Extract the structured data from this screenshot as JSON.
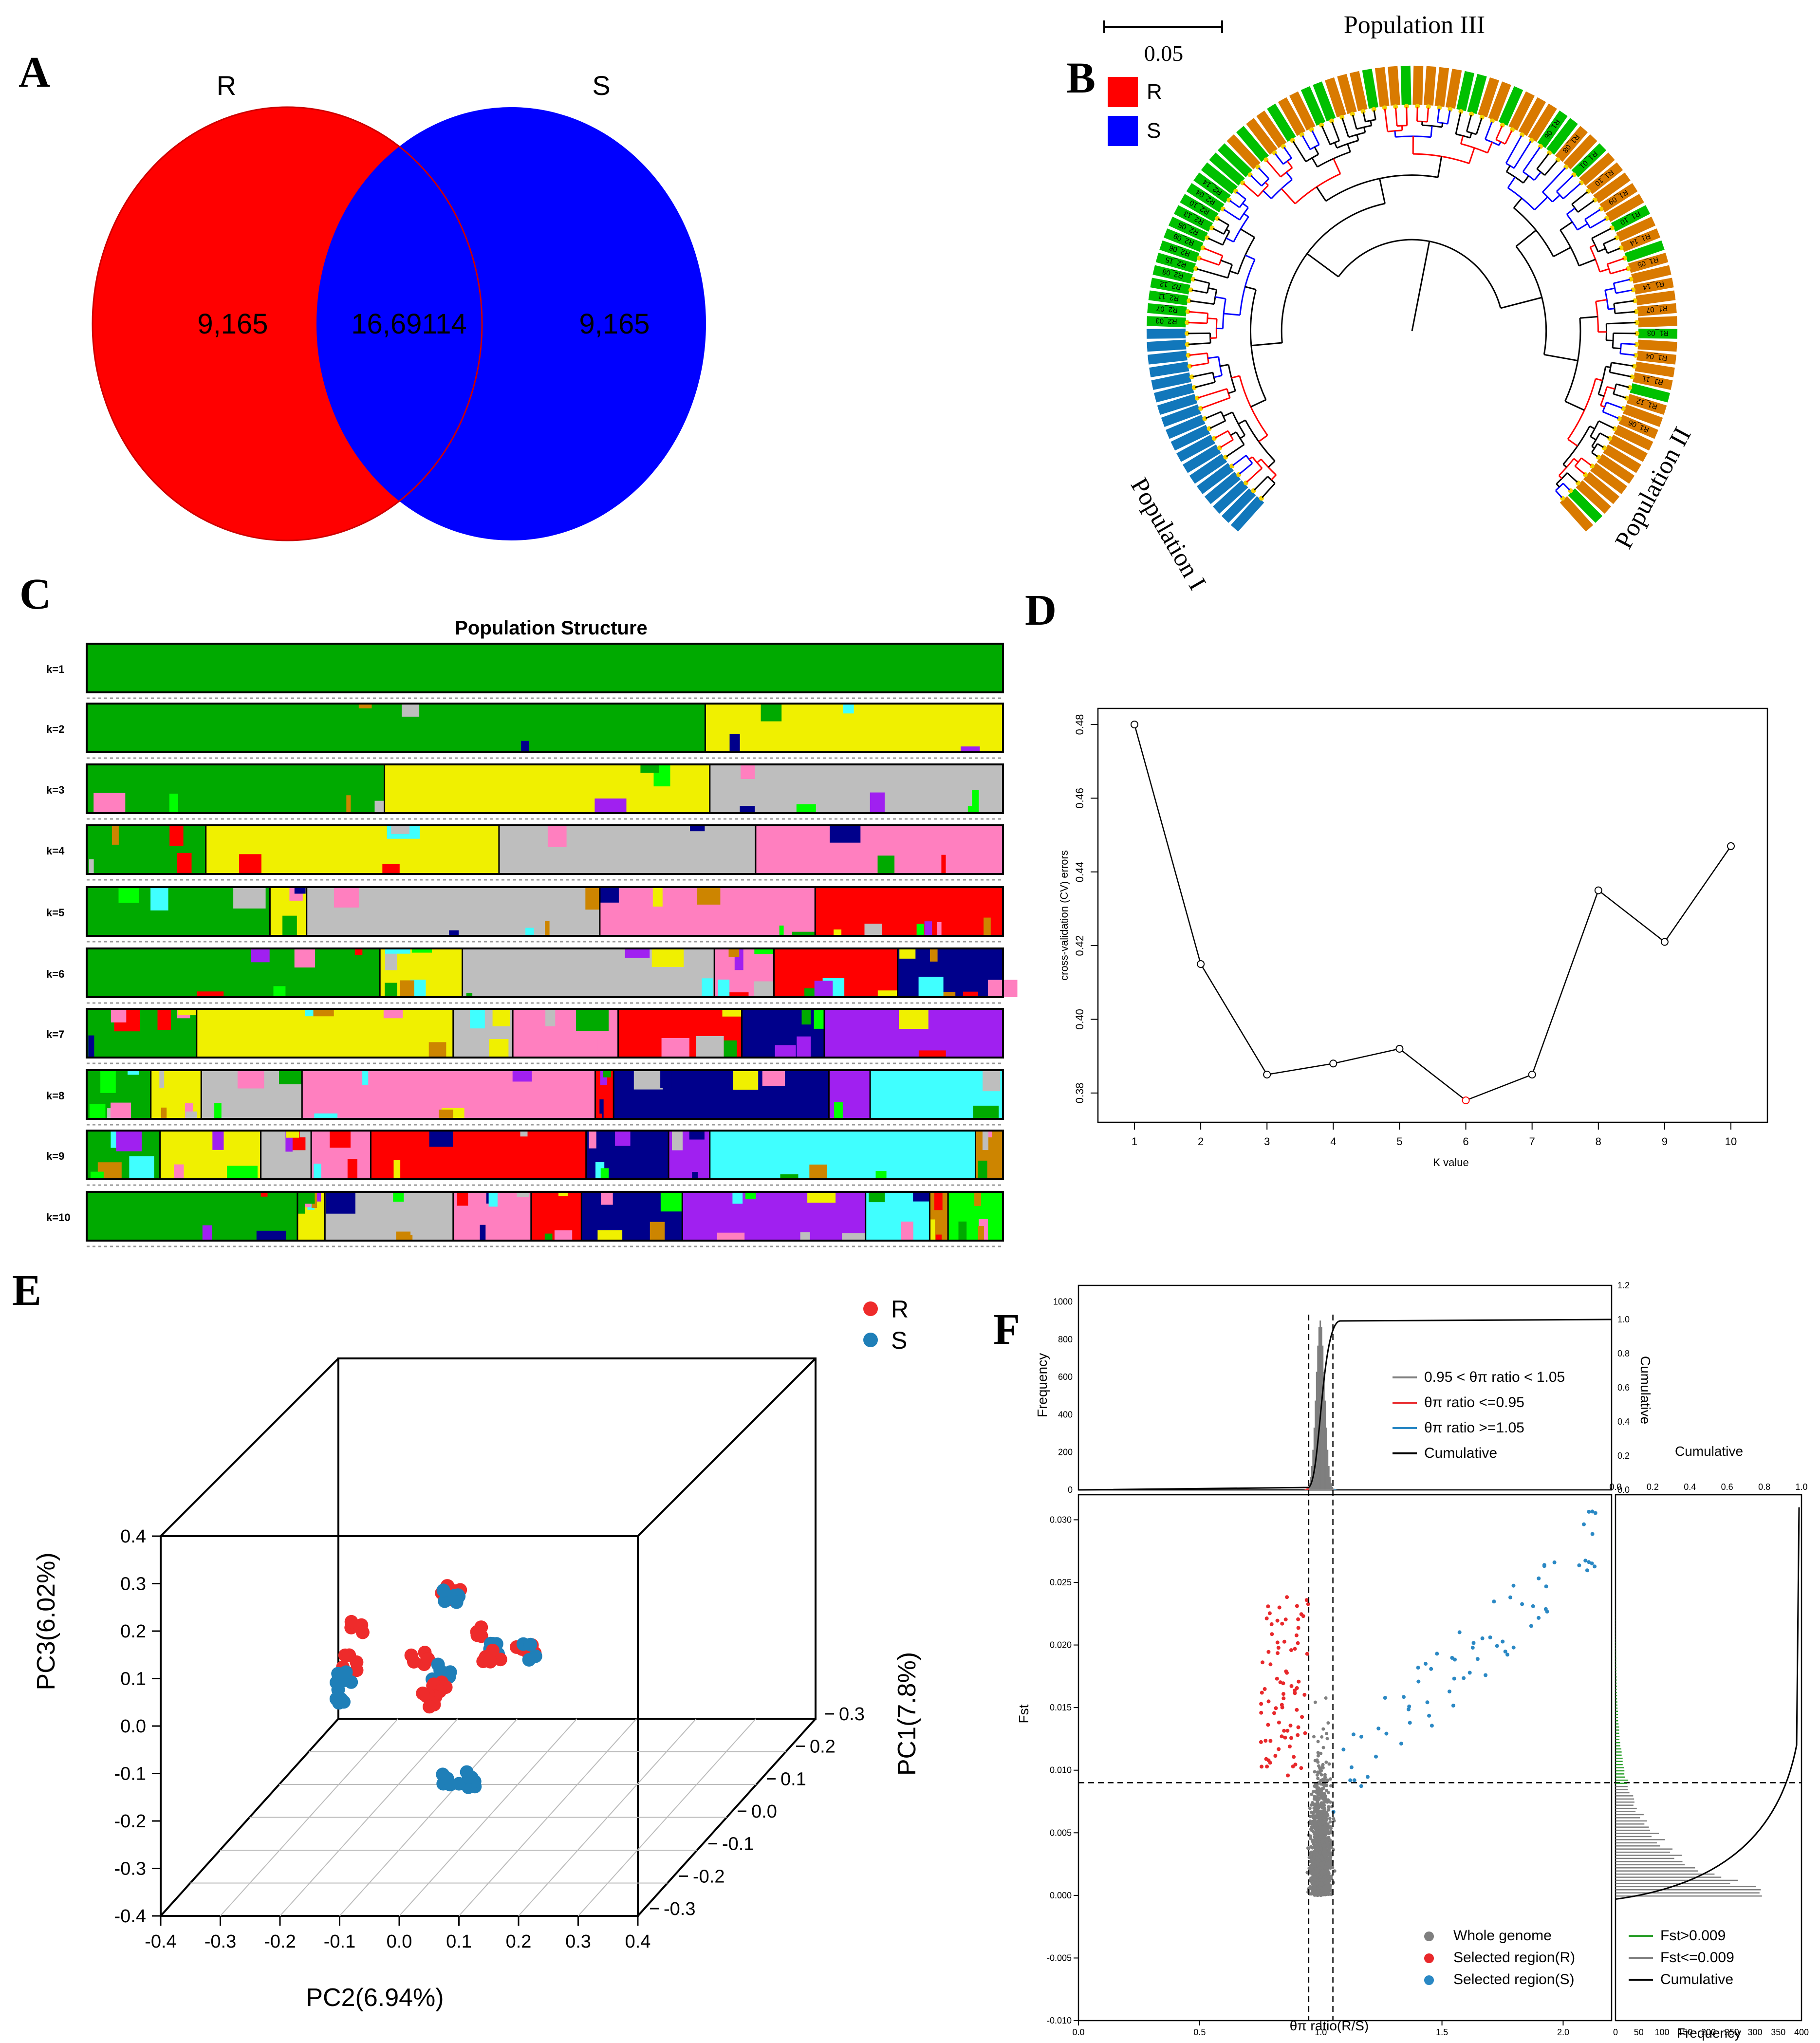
{
  "panel_labels": {
    "a": "A",
    "b": "B",
    "c": "C",
    "d": "D",
    "e": "E",
    "f": "F"
  },
  "venn": {
    "label_left": "R",
    "label_right": "S",
    "left_only": "9,165",
    "overlap": "16,69114",
    "right_only": "9,165",
    "color_left": "#ff0000",
    "color_right": "#0000ff"
  },
  "tree": {
    "scale_label": "0.05",
    "legend": [
      {
        "label": "R",
        "color": "#ff0000"
      },
      {
        "label": "S",
        "color": "#0000ff"
      }
    ],
    "populations": [
      "Population III",
      "Population II",
      "Population I"
    ],
    "tip_colors": {
      "orange": "#d97a00",
      "green": "#00c000",
      "blue": "#1177bb"
    },
    "tips_a": [
      "R1_06",
      "R1_08",
      "R1_01",
      "R1_10",
      "R1_09",
      "R1_10",
      "R1_14",
      "R1_05",
      "R1_14",
      "R1_07",
      "R1_03",
      "R1_04",
      "R1_11",
      "R1_12",
      "R1_06"
    ],
    "tips_b": [
      "R2_03",
      "R2_07",
      "R2_11",
      "R2_12",
      "R2_08",
      "R2_15",
      "R2_06",
      "R2_09",
      "R2_05",
      "R2_13",
      "R2_10",
      "R2_04",
      "R2_14"
    ]
  },
  "structure": {
    "title": "Population Structure",
    "row_labels": [
      "k=1",
      "k=2",
      "k=3",
      "k=4",
      "k=5",
      "k=6",
      "k=7",
      "k=8",
      "k=9",
      "k=10"
    ],
    "colors": {
      "green": "#00aa00",
      "yellow": "#f0f000",
      "grey": "#bebebe",
      "pink": "#ff7fbf",
      "red": "#ff0000",
      "navy": "#00008b",
      "purple": "#a020f0",
      "cyan": "#40ffff",
      "brown": "#cd8500",
      "lime": "#00ff00"
    }
  },
  "chart_data": [
    {
      "id": "cv",
      "type": "line",
      "title": "",
      "xlabel": "K value",
      "ylabel": "cross-validation (CV) errors",
      "x": [
        1,
        2,
        3,
        4,
        5,
        6,
        7,
        8,
        9,
        10
      ],
      "y": [
        0.48,
        0.415,
        0.385,
        0.388,
        0.392,
        0.378,
        0.385,
        0.435,
        0.421,
        0.447
      ],
      "highlight_index": 5,
      "xlim": [
        1,
        10
      ],
      "ylim": [
        0.375,
        0.485
      ],
      "yticks": [
        "0.38",
        "0.40",
        "0.42",
        "0.44",
        "0.46",
        "0.48"
      ]
    },
    {
      "id": "pca",
      "type": "scatter",
      "xlabel": "PC2(6.94%)",
      "ylabel": "PC3(6.02%)",
      "zlabel": "PC1(7.8%)",
      "legend": [
        {
          "label": "R",
          "color": "#ee2b2b"
        },
        {
          "label": "S",
          "color": "#1f7fb8"
        }
      ],
      "xticks": [
        "-0.4",
        "-0.3",
        "-0.2",
        "-0.1",
        "0.0",
        "0.1",
        "0.2",
        "0.3",
        "0.4"
      ],
      "yticks": [
        "-0.4",
        "-0.3",
        "-0.2",
        "-0.1",
        "0.0",
        "0.1",
        "0.2",
        "0.3",
        "0.4"
      ],
      "zticks": [
        "-0.3",
        "-0.2",
        "-0.1",
        "0.0",
        "0.1",
        "0.2",
        "0.3"
      ],
      "clusters": [
        {
          "x": 0.01,
          "y": 0.24,
          "group": "R"
        },
        {
          "x": -0.01,
          "y": 0.16,
          "group": "R"
        },
        {
          "x": -0.02,
          "y": 0.11,
          "group": "S"
        },
        {
          "x": -0.04,
          "y": 0.06,
          "group": "S"
        },
        {
          "x": 0.19,
          "y": 0.34,
          "group": "R"
        },
        {
          "x": 0.19,
          "y": 0.32,
          "group": "S"
        },
        {
          "x": 0.13,
          "y": 0.16,
          "group": "R"
        },
        {
          "x": 0.17,
          "y": 0.13,
          "group": "S"
        },
        {
          "x": 0.17,
          "y": 0.1,
          "group": "R"
        },
        {
          "x": 0.15,
          "y": 0.07,
          "group": "R"
        },
        {
          "x": 0.25,
          "y": 0.23,
          "group": "R"
        },
        {
          "x": 0.27,
          "y": 0.2,
          "group": "S"
        },
        {
          "x": 0.27,
          "y": 0.18,
          "group": "R"
        },
        {
          "x": 0.34,
          "y": 0.19,
          "group": "R"
        },
        {
          "x": 0.35,
          "y": 0.18,
          "group": "S"
        },
        {
          "x": 0.17,
          "y": -0.13,
          "group": "S"
        },
        {
          "x": 0.22,
          "y": -0.14,
          "group": "S"
        }
      ]
    },
    {
      "id": "selection",
      "type": "scatter",
      "xlabel": "θπ ratio(R/S)",
      "ylabel": "Fst",
      "xlim": [
        0.0,
        2.2
      ],
      "ylim": [
        -0.01,
        0.032
      ],
      "xticks": [
        "0.0",
        "0.5",
        "1.0",
        "1.5",
        "2.0"
      ],
      "yticks": [
        "-0.010",
        "-0.005",
        "0.000",
        "0.005",
        "0.010",
        "0.015",
        "0.020",
        "0.025",
        "0.030"
      ],
      "thresholds": {
        "theta_low": 0.95,
        "theta_high": 1.05,
        "fst": 0.009
      },
      "legend_bottom": [
        "Whole genome",
        "Selected region(R)",
        "Selected region(S)"
      ],
      "legend_right": [
        "Fst>0.009",
        "Fst<=0.009",
        "Cumulative"
      ],
      "top_hist": {
        "ylabel": "Frequency",
        "ylabel_right": "Cumulative",
        "yticks": [
          "0",
          "200",
          "400",
          "600",
          "800",
          "1000"
        ],
        "yticks_right": [
          "0.0",
          "0.2",
          "0.4",
          "0.6",
          "0.8",
          "1.0",
          "1.2"
        ],
        "legend": [
          "0.95 < θπ ratio < 1.05",
          "θπ ratio <=0.95",
          "θπ ratio >=1.05",
          "Cumulative"
        ]
      },
      "right_hist": {
        "xlabel": "Frequency",
        "xlabel_top": "Cumulative",
        "xticks": [
          "0",
          "50",
          "100",
          "150",
          "200",
          "250",
          "300",
          "350",
          "400"
        ],
        "xticks_top": [
          "0.0",
          "0.2",
          "0.4",
          "0.6",
          "0.8",
          "1.0"
        ]
      },
      "series_colors": {
        "whole": "#7f7f7f",
        "R": "#e8282b",
        "S": "#2a88c4",
        "fst_hi": "#2ca02c"
      }
    }
  ]
}
